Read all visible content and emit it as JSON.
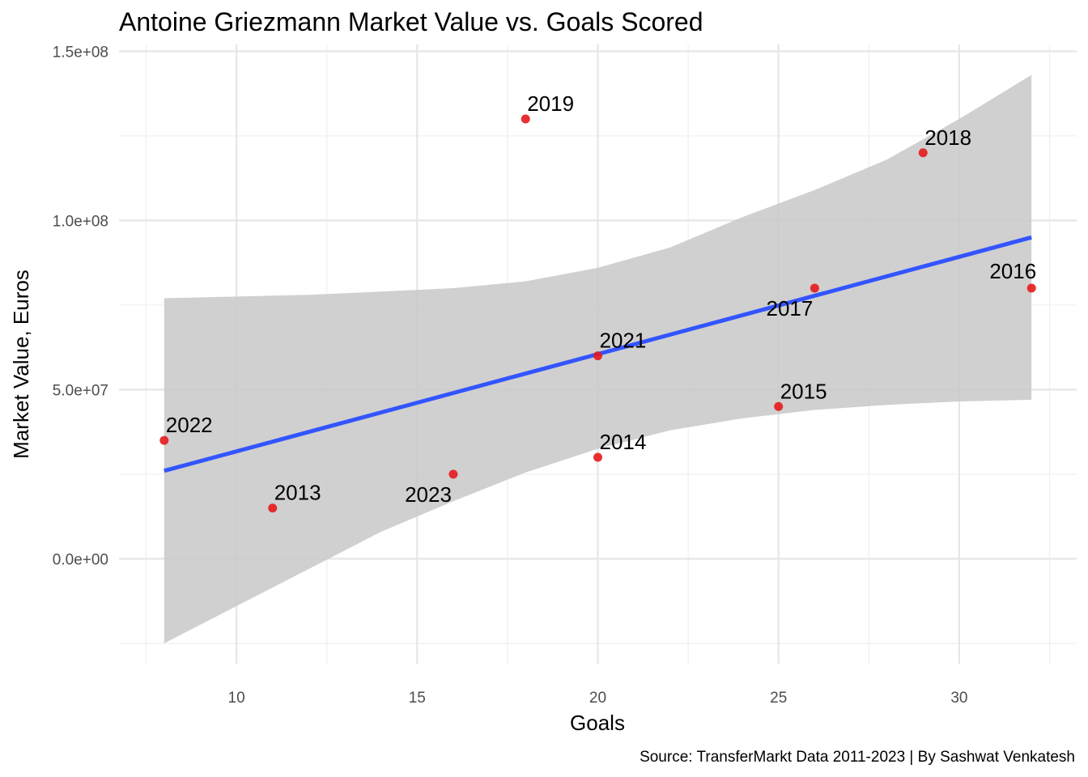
{
  "chart_data": {
    "type": "scatter",
    "title": "Antoine Griezmann Market Value vs. Goals Scored",
    "xlabel": "Goals",
    "ylabel": "Market Value, Euros",
    "caption": "Source: TransferMarkt Data 2011-2023 | By Sashwat Venkatesh",
    "xlim": [
      6.75,
      33.25
    ],
    "ylim": [
      -31000000,
      152000000
    ],
    "x_ticks": [
      10,
      15,
      20,
      25,
      30
    ],
    "x_tick_labels": [
      "10",
      "15",
      "20",
      "25",
      "30"
    ],
    "x_minor_ticks": [
      7.5,
      12.5,
      17.5,
      22.5,
      27.5,
      32.5
    ],
    "y_ticks": [
      0,
      50000000,
      100000000,
      150000000
    ],
    "y_tick_labels": [
      "0.0e+00",
      "5.0e+07",
      "1.0e+08",
      "1.5e+08"
    ],
    "y_minor_ticks": [
      -25000000,
      25000000,
      75000000,
      125000000
    ],
    "grid": true,
    "legend": "none",
    "points": [
      {
        "label": "2013",
        "goals": 11,
        "value": 15000000,
        "label_pos": "above-right"
      },
      {
        "label": "2014",
        "goals": 20,
        "value": 30000000,
        "label_pos": "above-right"
      },
      {
        "label": "2015",
        "goals": 25,
        "value": 45000000,
        "label_pos": "above-right"
      },
      {
        "label": "2016",
        "goals": 32,
        "value": 80000000,
        "label_pos": "above-left"
      },
      {
        "label": "2017",
        "goals": 26,
        "value": 80000000,
        "label_pos": "below-left"
      },
      {
        "label": "2018",
        "goals": 29,
        "value": 120000000,
        "label_pos": "above-right"
      },
      {
        "label": "2019",
        "goals": 18,
        "value": 130000000,
        "label_pos": "above-right"
      },
      {
        "label": "2021",
        "goals": 20,
        "value": 60000000,
        "label_pos": "above-right"
      },
      {
        "label": "2022",
        "goals": 8,
        "value": 35000000,
        "label_pos": "above-right"
      },
      {
        "label": "2023",
        "goals": 16,
        "value": 25000000,
        "label_pos": "below-left"
      }
    ],
    "trend_line": {
      "method": "linear",
      "x": [
        8,
        32
      ],
      "y": [
        26000000,
        95000000
      ]
    },
    "confidence_band": {
      "x": [
        8,
        10,
        12,
        14,
        16,
        18,
        20,
        22,
        24,
        26,
        28,
        30,
        32
      ],
      "upper": [
        77000000,
        77500000,
        78000000,
        79000000,
        80000000,
        82000000,
        86000000,
        92000000,
        101000000,
        109000000,
        118000000,
        130000000,
        143000000
      ],
      "lower": [
        -25000000,
        -14000000,
        -3000000,
        8000000,
        17000000,
        25500000,
        32500000,
        38000000,
        41500000,
        44000000,
        45500000,
        46500000,
        47000000
      ]
    },
    "colors": {
      "point": "#e41a1c",
      "line": "#3355ff",
      "band": "#c8c8c8"
    }
  }
}
